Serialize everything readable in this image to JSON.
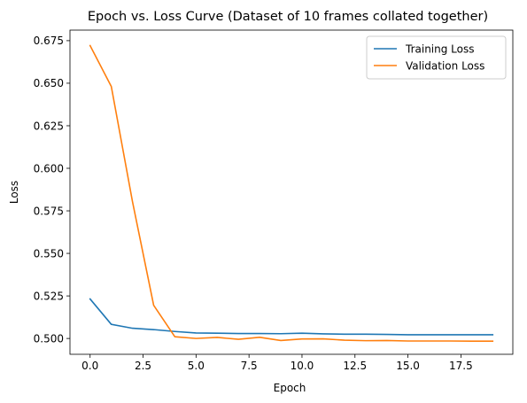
{
  "chart_data": {
    "type": "line",
    "title": "Epoch vs. Loss Curve (Dataset of 10 frames collated together)",
    "xlabel": "Epoch",
    "ylabel": "Loss",
    "xlim": [
      -0.95,
      19.95
    ],
    "ylim": [
      0.4907,
      0.6812
    ],
    "xticks": [
      0,
      2.5,
      5,
      7.5,
      10,
      12.5,
      15,
      17.5
    ],
    "xtick_labels": [
      "0.0",
      "2.5",
      "5.0",
      "7.5",
      "10.0",
      "12.5",
      "15.0",
      "17.5"
    ],
    "yticks": [
      0.5,
      0.525,
      0.55,
      0.575,
      0.6,
      0.625,
      0.65,
      0.675
    ],
    "ytick_labels": [
      "0.500",
      "0.525",
      "0.550",
      "0.575",
      "0.600",
      "0.625",
      "0.650",
      "0.675"
    ],
    "grid": false,
    "legend_position": "top-right",
    "x": [
      0,
      1,
      2,
      3,
      4,
      5,
      6,
      7,
      8,
      9,
      10,
      11,
      12,
      13,
      14,
      15,
      16,
      17,
      18,
      19
    ],
    "series": [
      {
        "name": "Training Loss",
        "color": "#1f77b4",
        "values": [
          0.5232,
          0.5083,
          0.506,
          0.5052,
          0.5041,
          0.5032,
          0.5031,
          0.5029,
          0.5029,
          0.5028,
          0.5031,
          0.5027,
          0.5025,
          0.5025,
          0.5024,
          0.5022,
          0.5022,
          0.5022,
          0.5022,
          0.5022
        ]
      },
      {
        "name": "Validation Loss",
        "color": "#ff7f0e",
        "values": [
          0.6721,
          0.6481,
          0.5804,
          0.5195,
          0.501,
          0.5,
          0.5006,
          0.4995,
          0.5007,
          0.4988,
          0.4997,
          0.4998,
          0.499,
          0.4987,
          0.4988,
          0.4985,
          0.4985,
          0.4985,
          0.4984,
          0.4984
        ]
      }
    ]
  }
}
